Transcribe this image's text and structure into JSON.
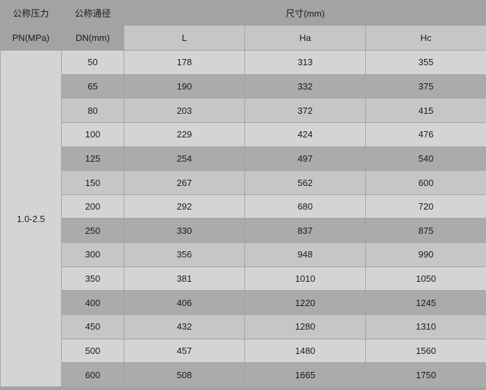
{
  "chart_data": {
    "type": "table",
    "title": "尺寸(mm)",
    "row_group": {
      "label": "公称压力 PN(MPa)",
      "value": "1.0-2.5"
    },
    "categories_label": "公称通径 DN(mm)",
    "categories": [
      50,
      65,
      80,
      100,
      125,
      150,
      200,
      250,
      300,
      350,
      400,
      450,
      500,
      600
    ],
    "series": [
      {
        "name": "L",
        "values": [
          178,
          190,
          203,
          229,
          254,
          267,
          292,
          330,
          356,
          381,
          406,
          432,
          457,
          508
        ]
      },
      {
        "name": "Ha",
        "values": [
          313,
          332,
          372,
          424,
          497,
          562,
          680,
          837,
          948,
          1010,
          1220,
          1280,
          1480,
          1665
        ]
      },
      {
        "name": "Hc",
        "values": [
          355,
          375,
          415,
          476,
          540,
          600,
          720,
          875,
          990,
          1050,
          1245,
          1310,
          1560,
          1750
        ]
      }
    ]
  },
  "header": {
    "pressure_group": "公称压力",
    "pressure_unit": "PN(MPa)",
    "diameter_group": "公称通径",
    "diameter_unit": "DN(mm)",
    "size_group": "尺寸(mm)",
    "pn_value": "1.0-2.5"
  },
  "colors": {
    "header-bg": "#a3a3a3",
    "subheader-bg": "#c6c6c6",
    "row-light": "#d4d4d4",
    "row-medium": "#c6c6c6",
    "row-dark": "#ababab",
    "border-color": "#a3a3a3",
    "text-color": "#1a1a1a"
  }
}
